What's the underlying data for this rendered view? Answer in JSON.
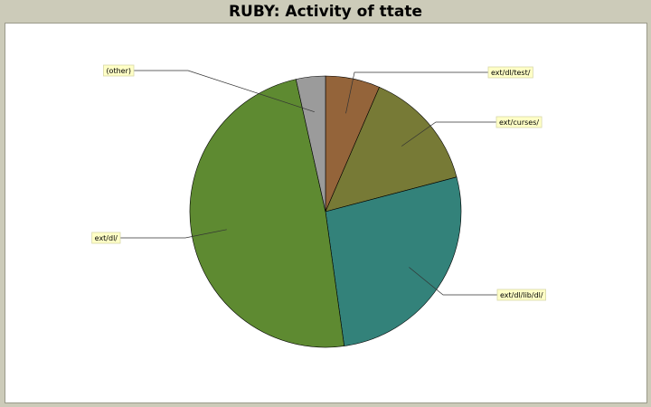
{
  "title": "RUBY: Activity of ttate",
  "chart_data": {
    "type": "pie",
    "title": "RUBY: Activity of ttate",
    "start_angle_deg": 90,
    "direction": "clockwise",
    "slices": [
      {
        "label": "ext/dl/test/",
        "value": 6.5,
        "color": "#94643a"
      },
      {
        "label": "ext/curses/",
        "value": 14.4,
        "color": "#777a36"
      },
      {
        "label": "ext/dl/lib/dl/",
        "value": 26.9,
        "color": "#33827a"
      },
      {
        "label": "ext/dl/",
        "value": 48.7,
        "color": "#5e8a31"
      },
      {
        "label": "(other)",
        "value": 3.5,
        "color": "#9b9b9b"
      }
    ]
  }
}
